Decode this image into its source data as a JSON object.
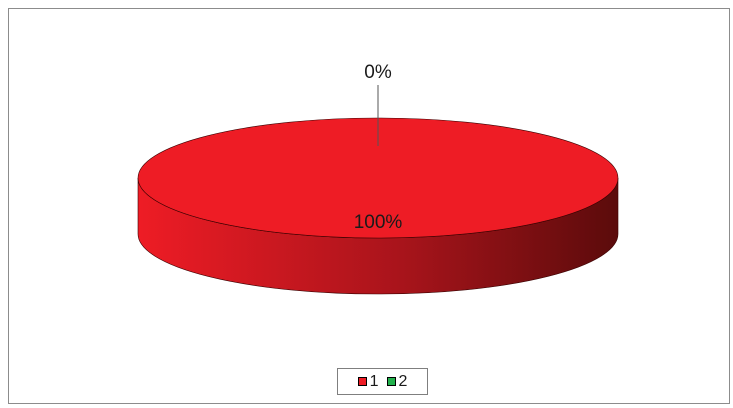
{
  "chart_data": {
    "type": "pie",
    "three_d": true,
    "categories": [
      "1",
      "2"
    ],
    "values": [
      100,
      0
    ],
    "data_labels": [
      "100%",
      "0%"
    ],
    "colors": [
      "#ee1c25",
      "#22b14c"
    ],
    "side_dark_color": "#5b0b0b",
    "legend": {
      "placement": "bottom",
      "items": [
        {
          "label": "1",
          "color": "#ee1c25"
        },
        {
          "label": "2",
          "color": "#22b14c"
        }
      ]
    }
  }
}
